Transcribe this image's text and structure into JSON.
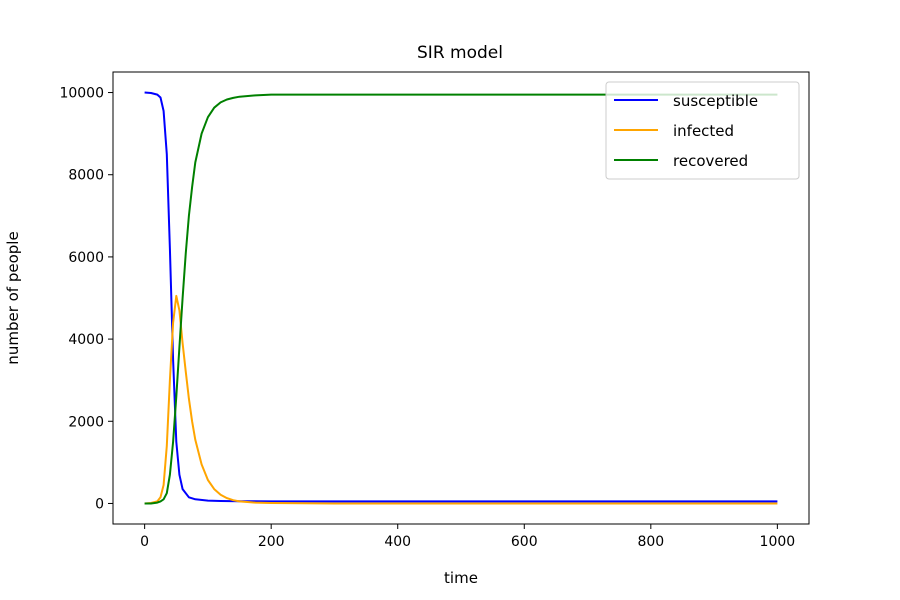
{
  "chart_data": {
    "type": "line",
    "title": "SIR model",
    "xlabel": "time",
    "ylabel": "number of people",
    "xlim": [
      -50,
      1050
    ],
    "ylim": [
      -500,
      10500
    ],
    "xticks": [
      0,
      200,
      400,
      600,
      800,
      1000
    ],
    "yticks": [
      0,
      2000,
      4000,
      6000,
      8000,
      10000
    ],
    "grid": false,
    "legend_position": "top-right",
    "series": [
      {
        "name": "susceptible",
        "color": "#0000ff",
        "x": [
          0,
          10,
          20,
          25,
          30,
          35,
          40,
          45,
          50,
          55,
          60,
          70,
          80,
          100,
          120,
          150,
          200,
          300,
          500,
          1000
        ],
        "y": [
          10000,
          9990,
          9950,
          9880,
          9550,
          8500,
          6200,
          3500,
          1500,
          700,
          350,
          150,
          100,
          70,
          60,
          55,
          50,
          50,
          50,
          50
        ]
      },
      {
        "name": "infected",
        "color": "#ffa500",
        "x": [
          0,
          10,
          20,
          25,
          30,
          35,
          40,
          45,
          50,
          55,
          60,
          65,
          70,
          75,
          80,
          90,
          100,
          110,
          120,
          130,
          140,
          150,
          175,
          200,
          300,
          1000
        ],
        "y": [
          0,
          10,
          50,
          150,
          450,
          1400,
          3000,
          4400,
          5050,
          4700,
          3900,
          3200,
          2550,
          2000,
          1550,
          950,
          570,
          350,
          210,
          130,
          80,
          50,
          20,
          10,
          0,
          0
        ]
      },
      {
        "name": "recovered",
        "color": "#008000",
        "x": [
          0,
          10,
          20,
          25,
          30,
          35,
          40,
          45,
          50,
          55,
          60,
          65,
          70,
          75,
          80,
          90,
          100,
          110,
          120,
          130,
          140,
          150,
          175,
          200,
          300,
          1000
        ],
        "y": [
          0,
          0,
          20,
          50,
          100,
          250,
          700,
          1500,
          2600,
          3800,
          5000,
          6100,
          7000,
          7700,
          8300,
          9000,
          9400,
          9630,
          9760,
          9830,
          9870,
          9900,
          9930,
          9950,
          9950,
          9950
        ]
      }
    ]
  }
}
